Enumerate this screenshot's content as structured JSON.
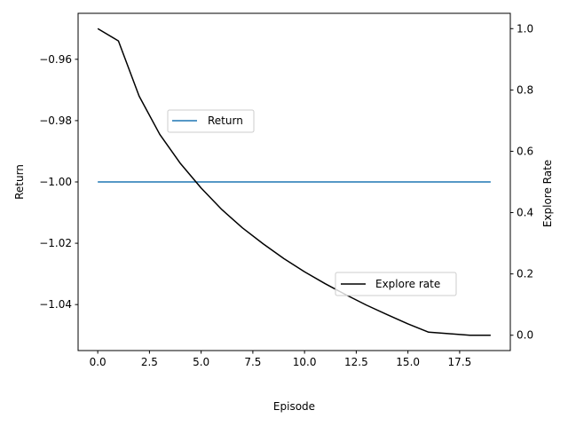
{
  "chart_data": {
    "type": "line",
    "xlabel": "Episode",
    "ylabel_left": "Return",
    "ylabel_right": "Explore Rate",
    "xlim": [
      -0.95,
      19.95
    ],
    "ylim_left": [
      -1.055,
      -0.945
    ],
    "ylim_right": [
      -0.05,
      1.05
    ],
    "x_ticks": [
      0.0,
      2.5,
      5.0,
      7.5,
      10.0,
      12.5,
      15.0,
      17.5
    ],
    "x_tick_labels": [
      "0.0",
      "2.5",
      "5.0",
      "7.5",
      "10.0",
      "12.5",
      "15.0",
      "17.5"
    ],
    "y_left_ticks": [
      -0.96,
      -0.98,
      -1.0,
      -1.02,
      -1.04
    ],
    "y_left_tick_labels": [
      "−0.96",
      "−0.98",
      "−1.00",
      "−1.02",
      "−1.04"
    ],
    "y_right_ticks": [
      0.0,
      0.2,
      0.4,
      0.6,
      0.8,
      1.0
    ],
    "y_right_tick_labels": [
      "0.0",
      "0.2",
      "0.4",
      "0.6",
      "0.8",
      "1.0"
    ],
    "grid": false,
    "x": [
      0,
      1,
      2,
      3,
      4,
      5,
      6,
      7,
      8,
      9,
      10,
      11,
      12,
      13,
      14,
      15,
      16,
      17,
      18,
      19
    ],
    "series": [
      {
        "name": "Return",
        "axis": "left",
        "color": "#1f77b4",
        "legend_placement": "upper-left-center",
        "values": [
          -1,
          -1,
          -1,
          -1,
          -1,
          -1,
          -1,
          -1,
          -1,
          -1,
          -1,
          -1,
          -1,
          -1,
          -1,
          -1,
          -1,
          -1,
          -1,
          -1
        ]
      },
      {
        "name": "Explore rate",
        "axis": "right",
        "color": "#000000",
        "legend_placement": "lower-right",
        "values": [
          1.0,
          0.96,
          0.78,
          0.655,
          0.56,
          0.48,
          0.41,
          0.35,
          0.298,
          0.25,
          0.207,
          0.168,
          0.132,
          0.098,
          0.067,
          0.037,
          0.01,
          0.005,
          0.0,
          0.0
        ]
      }
    ]
  }
}
